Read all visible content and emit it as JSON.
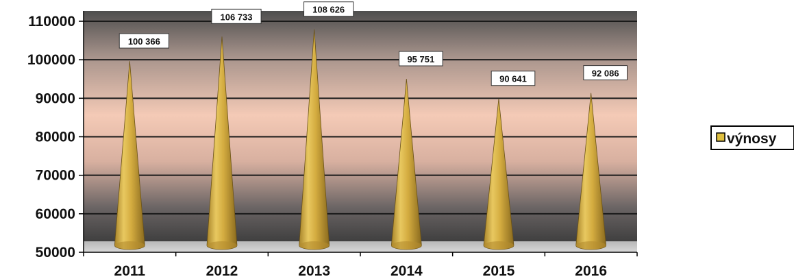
{
  "chart_data": {
    "type": "bar",
    "shape": "cone",
    "categories": [
      "2011",
      "2012",
      "2013",
      "2014",
      "2015",
      "2016"
    ],
    "series": [
      {
        "name": "výnosy",
        "values": [
          100366,
          106733,
          108626,
          95751,
          90641,
          92086
        ]
      }
    ],
    "data_labels": [
      "100 366",
      "106 733",
      "108 626",
      "95 751",
      "90 641",
      "92 086"
    ],
    "y_ticks": [
      "50000",
      "60000",
      "70000",
      "80000",
      "90000",
      "100000",
      "110000"
    ],
    "ylim": [
      50000,
      112000
    ],
    "grid": true,
    "legend_position": "right",
    "colors": {
      "cone": "#d9b040",
      "plot_background_top": "#5a5a5a",
      "plot_background_mid": "#f2c8b4",
      "plot_background_bottom": "#4a4a4a",
      "floor": "#c8c8c8",
      "legend_swatch": "#e0c040"
    }
  }
}
